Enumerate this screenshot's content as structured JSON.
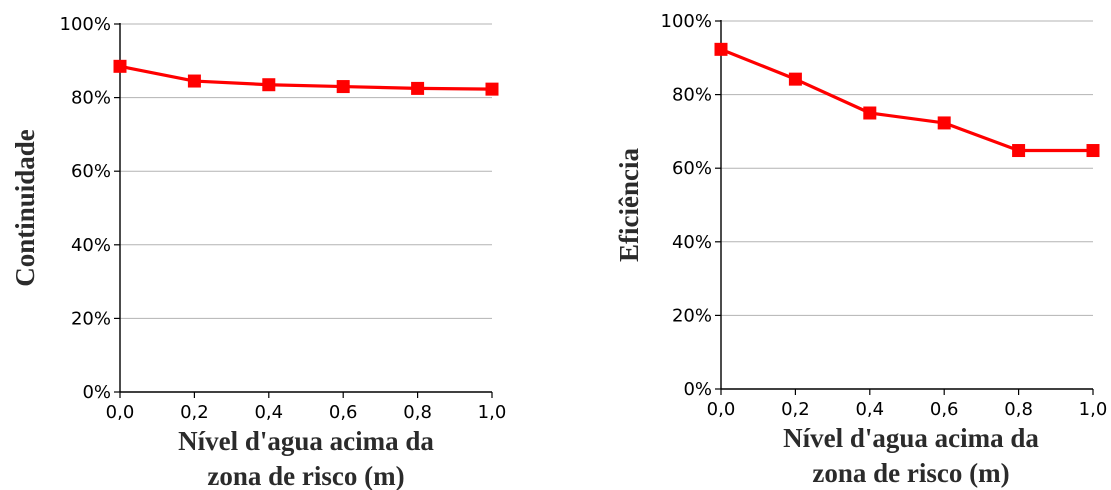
{
  "chart_data": [
    {
      "type": "line",
      "title": "",
      "xlabel_lines": [
        "Nível d'agua acima da",
        "zona de risco (m)"
      ],
      "ylabel": "Continuidade",
      "x": [
        0.0,
        0.2,
        0.4,
        0.6,
        0.8,
        1.0
      ],
      "x_tick_labels": [
        "0,0",
        "0,2",
        "0,4",
        "0,6",
        "0,8",
        "1,0"
      ],
      "y_ticks": [
        0,
        20,
        40,
        60,
        80,
        100
      ],
      "y_tick_labels": [
        "0%",
        "20%",
        "40%",
        "60%",
        "80%",
        "100%"
      ],
      "xlim": [
        0,
        1
      ],
      "ylim": [
        0,
        100
      ],
      "grid": "horizontal",
      "series": [
        {
          "values": [
            88.5,
            84.5,
            83.5,
            83.0,
            82.5,
            82.3
          ],
          "color": "#ff0000",
          "marker": "square"
        }
      ]
    },
    {
      "type": "line",
      "title": "",
      "xlabel_lines": [
        "Nível d'agua acima da",
        "zona de risco (m)"
      ],
      "ylabel": "Eficiência",
      "x": [
        0.0,
        0.2,
        0.4,
        0.6,
        0.8,
        1.0
      ],
      "x_tick_labels": [
        "0,0",
        "0,2",
        "0,4",
        "0,6",
        "0,8",
        "1,0"
      ],
      "y_ticks": [
        0,
        20,
        40,
        60,
        80,
        100
      ],
      "y_tick_labels": [
        "0%",
        "20%",
        "40%",
        "60%",
        "80%",
        "100%"
      ],
      "xlim": [
        0,
        1
      ],
      "ylim": [
        0,
        100
      ],
      "grid": "horizontal",
      "series": [
        {
          "values": [
            92.3,
            84.2,
            75.0,
            72.3,
            64.8,
            64.8
          ],
          "color": "#ff0000",
          "marker": "square"
        }
      ]
    }
  ]
}
